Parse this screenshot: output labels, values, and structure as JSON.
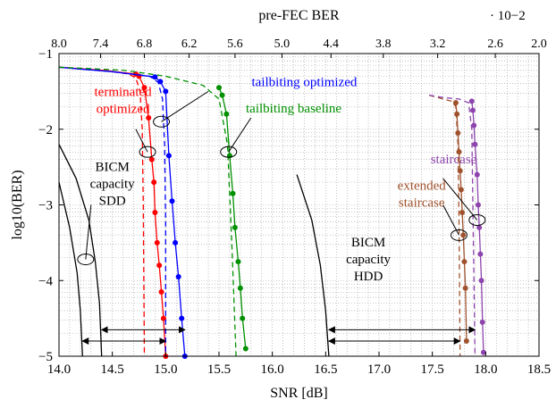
{
  "chart_data": {
    "type": "line",
    "xlabel": "SNR [dB]",
    "ylabel": "log10(BER)",
    "top_axis_label": "pre-FEC BER",
    "top_axis_multiplier": "· 10−2",
    "xlim": [
      14.0,
      18.5
    ],
    "ylim": [
      -5,
      -1
    ],
    "x_ticks": [
      "14.0",
      "14.5",
      "15.0",
      "15.5",
      "16.0",
      "16.5",
      "17.0",
      "17.5",
      "18.0",
      "18.5"
    ],
    "y_ticks": [
      "−1",
      "−2",
      "−3",
      "−4",
      "−5"
    ],
    "top_ticks": [
      {
        "label": "8.0",
        "snr": 14.0
      },
      {
        "label": "7.4",
        "snr": 14.39
      },
      {
        "label": "6.8",
        "snr": 14.8
      },
      {
        "label": "6.2",
        "snr": 15.22
      },
      {
        "label": "5.6",
        "snr": 15.65
      },
      {
        "label": "5.0",
        "snr": 16.09
      },
      {
        "label": "4.4",
        "snr": 16.55
      },
      {
        "label": "3.8",
        "snr": 17.04
      },
      {
        "label": "3.2",
        "snr": 17.55
      },
      {
        "label": "2.6",
        "snr": 18.09
      },
      {
        "label": "2.0",
        "snr": 18.5
      }
    ],
    "grid": true,
    "series": [
      {
        "name": "terminated optimized",
        "color": "#ff0000",
        "style": "solid-markers",
        "x": [
          14.0,
          14.4,
          14.72,
          14.75,
          14.8,
          14.84,
          14.87,
          14.89,
          14.9,
          14.92,
          14.94,
          14.96,
          14.98,
          15.0
        ],
        "y": [
          -1.18,
          -1.22,
          -1.27,
          -1.3,
          -1.45,
          -1.85,
          -2.4,
          -2.7,
          -3.1,
          -3.5,
          -3.8,
          -4.15,
          -4.5,
          -5.0
        ]
      },
      {
        "name": "terminated optimized (threshold)",
        "color": "#ff0000",
        "style": "dashed",
        "x": [
          14.0,
          14.4,
          14.65,
          14.72,
          14.76,
          14.78,
          14.79,
          14.8
        ],
        "y": [
          -1.18,
          -1.22,
          -1.27,
          -1.32,
          -1.5,
          -2.0,
          -3.0,
          -5.0
        ]
      },
      {
        "name": "tailbiting optimized",
        "color": "#0000ff",
        "style": "solid-markers",
        "x": [
          14.0,
          14.5,
          14.9,
          14.95,
          15.0,
          15.03,
          15.06,
          15.09,
          15.12,
          15.15,
          15.18
        ],
        "y": [
          -1.18,
          -1.24,
          -1.31,
          -1.37,
          -1.5,
          -2.35,
          -2.95,
          -3.5,
          -3.95,
          -4.5,
          -5.0
        ]
      },
      {
        "name": "tailbiting optimized (threshold)",
        "color": "#0000ff",
        "style": "dashed",
        "x": [
          14.0,
          14.5,
          14.85,
          14.93,
          14.97,
          14.99,
          15.0,
          15.0
        ],
        "y": [
          -1.18,
          -1.24,
          -1.3,
          -1.38,
          -1.6,
          -2.2,
          -3.2,
          -5.0
        ]
      },
      {
        "name": "tailbiting baseline",
        "color": "#009000",
        "style": "solid-markers",
        "x": [
          15.5,
          15.53,
          15.57,
          15.6,
          15.63,
          15.65,
          15.68,
          15.7,
          15.72,
          15.75
        ],
        "y": [
          -1.45,
          -1.55,
          -1.8,
          -2.35,
          -2.85,
          -3.3,
          -3.75,
          -4.1,
          -4.5,
          -4.9
        ]
      },
      {
        "name": "tailbiting baseline (threshold)",
        "color": "#009000",
        "style": "dashed",
        "x": [
          14.0,
          14.6,
          15.0,
          15.35,
          15.5,
          15.58,
          15.62,
          15.66
        ],
        "y": [
          -1.18,
          -1.22,
          -1.3,
          -1.42,
          -1.6,
          -2.2,
          -3.5,
          -5.0
        ]
      },
      {
        "name": "extended staircase",
        "color": "#a0522d",
        "style": "solid-markers",
        "x": [
          17.72,
          17.73,
          17.74,
          17.75,
          17.76,
          17.77,
          17.78,
          17.79,
          17.8,
          17.81,
          17.82
        ],
        "y": [
          -1.65,
          -1.8,
          -2.05,
          -2.3,
          -2.55,
          -2.8,
          -3.1,
          -3.4,
          -3.75,
          -4.1,
          -4.8
        ]
      },
      {
        "name": "extended staircase (threshold)",
        "color": "#a0522d",
        "style": "dashed",
        "x": [
          17.47,
          17.6,
          17.68,
          17.72,
          17.74,
          17.75,
          17.76
        ],
        "y": [
          -1.55,
          -1.6,
          -1.63,
          -1.7,
          -2.2,
          -3.2,
          -5.0
        ]
      },
      {
        "name": "staircase",
        "color": "#8e44ad",
        "style": "solid-markers",
        "x": [
          17.87,
          17.88,
          17.89,
          17.9,
          17.92,
          17.93,
          17.94,
          17.95,
          17.96,
          17.97,
          17.98
        ],
        "y": [
          -1.63,
          -1.75,
          -1.95,
          -2.2,
          -2.6,
          -3.0,
          -3.3,
          -3.65,
          -4.0,
          -4.55,
          -4.95
        ]
      },
      {
        "name": "staircase (threshold)",
        "color": "#8e44ad",
        "style": "dashed",
        "x": [
          17.47,
          17.6,
          17.75,
          17.84,
          17.87,
          17.88,
          17.9
        ],
        "y": [
          -1.55,
          -1.58,
          -1.6,
          -1.65,
          -2.0,
          -3.0,
          -5.0
        ]
      },
      {
        "name": "BICM capacity SDD (a)",
        "color": "#000000",
        "style": "solid",
        "x": [
          14.0,
          14.1,
          14.17,
          14.2,
          14.22
        ],
        "y": [
          -2.7,
          -3.3,
          -3.9,
          -4.4,
          -5.0
        ]
      },
      {
        "name": "BICM capacity SDD (b)",
        "color": "#000000",
        "style": "solid",
        "x": [
          14.0,
          14.16,
          14.28,
          14.34,
          14.38,
          14.4
        ],
        "y": [
          -2.2,
          -2.65,
          -3.2,
          -3.75,
          -4.3,
          -5.0
        ]
      },
      {
        "name": "BICM capacity HDD",
        "color": "#000000",
        "style": "solid",
        "x": [
          16.23,
          16.37,
          16.45,
          16.5,
          16.53
        ],
        "y": [
          -2.6,
          -3.2,
          -3.8,
          -4.4,
          -5.0
        ]
      }
    ],
    "arrows": [
      {
        "from": 14.22,
        "to": 15.0,
        "y": -4.8
      },
      {
        "from": 14.4,
        "to": 15.18,
        "y": -4.65
      },
      {
        "from": 16.53,
        "to": 17.76,
        "y": -4.8
      },
      {
        "from": 16.53,
        "to": 17.9,
        "y": -4.65
      }
    ],
    "annotations": [
      {
        "lines": [
          "tailbiting optimized"
        ],
        "color": "#0000ff",
        "x": 16.3,
        "y": -1.43
      },
      {
        "lines": [
          "terminated",
          "optimized"
        ],
        "color": "#ff0000",
        "x": 14.6,
        "y": -1.56
      },
      {
        "lines": [
          "tailbiting baseline"
        ],
        "color": "#009000",
        "x": 16.2,
        "y": -1.78
      },
      {
        "lines": [
          "BICM",
          "capacity",
          "SDD"
        ],
        "color": "#000000",
        "x": 14.5,
        "y": -2.55
      },
      {
        "lines": [
          "staircase"
        ],
        "color": "#8e44ad",
        "x": 17.7,
        "y": -2.45
      },
      {
        "lines": [
          "extended",
          "staircase"
        ],
        "color": "#a0522d",
        "x": 17.4,
        "y": -2.8
      },
      {
        "lines": [
          "BICM",
          "capacity",
          "HDD"
        ],
        "color": "#000000",
        "x": 16.9,
        "y": -3.55
      }
    ],
    "markers_ellipse": [
      {
        "x": 14.96,
        "y": -1.9,
        "leader_to": [
          15.4,
          -1.5
        ]
      },
      {
        "x": 14.83,
        "y": -2.3,
        "leader_to": [
          14.72,
          -2.0
        ]
      },
      {
        "x": 15.59,
        "y": -2.3,
        "leader_to": [
          15.8,
          -1.85
        ]
      },
      {
        "x": 14.25,
        "y": -3.72,
        "leader_to": [
          14.3,
          -3.0
        ]
      },
      {
        "x": 17.75,
        "y": -3.4,
        "leader_to": [
          17.6,
          -3.0
        ]
      },
      {
        "x": 17.92,
        "y": -3.2,
        "leader_to": [
          17.6,
          -2.65
        ]
      }
    ]
  }
}
